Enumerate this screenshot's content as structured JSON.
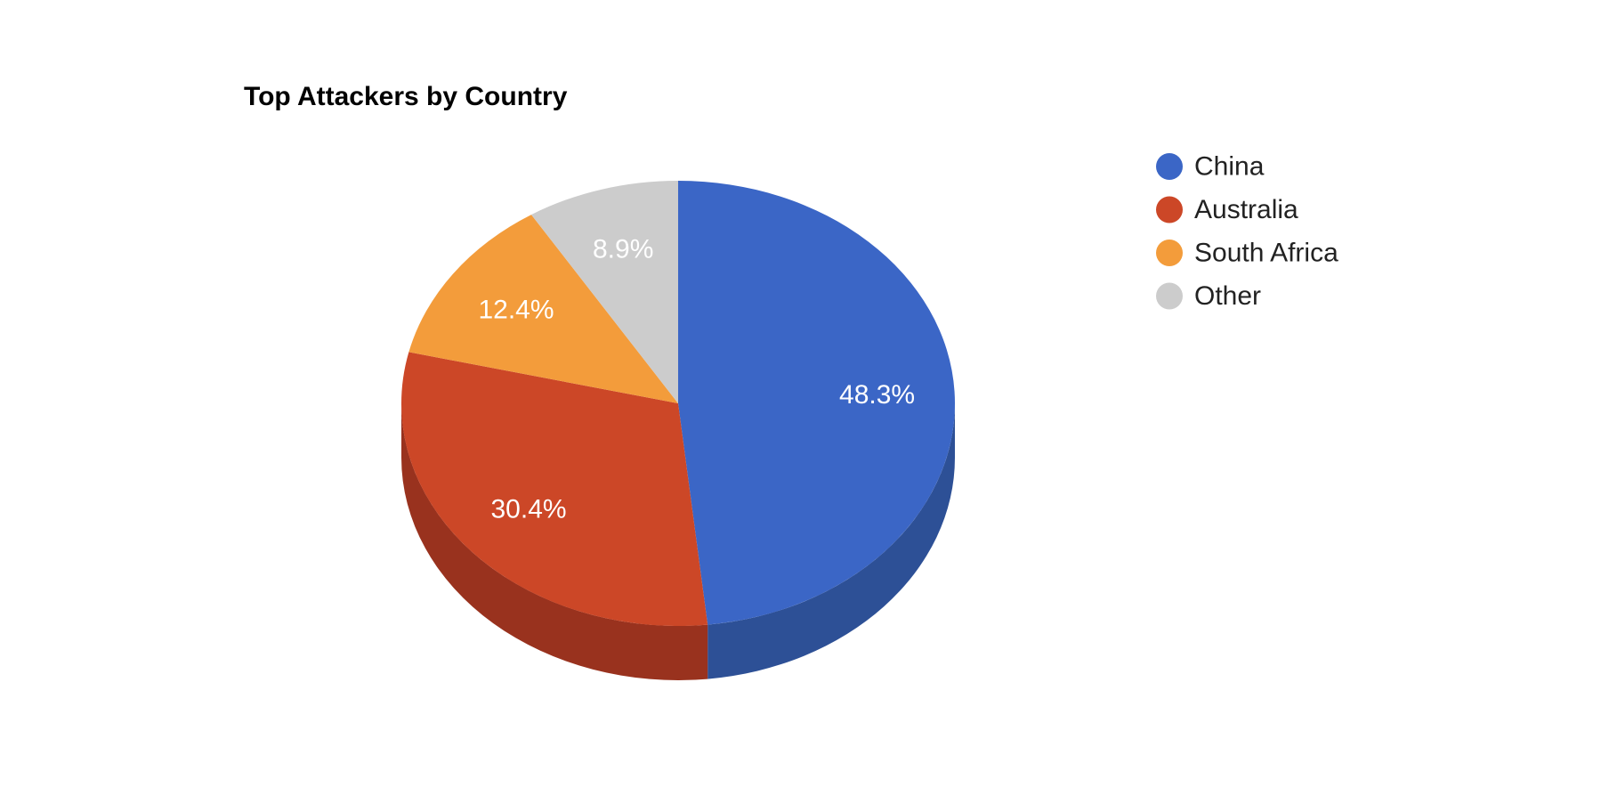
{
  "chart_data": {
    "type": "pie",
    "title": "Top Attackers by Country",
    "is3d": true,
    "legend_position": "right",
    "slices": [
      {
        "label": "China",
        "value": 48.3,
        "display": "48.3%",
        "color": "#3b66c6",
        "side_color": "#2d5096"
      },
      {
        "label": "Australia",
        "value": 30.4,
        "display": "30.4%",
        "color": "#cc4727",
        "side_color": "#99321e"
      },
      {
        "label": "South Africa",
        "value": 12.4,
        "display": "12.4%",
        "color": "#f39c3b",
        "side_color": "#b8762c"
      },
      {
        "label": "Other",
        "value": 8.9,
        "display": "8.9%",
        "color": "#cccccc",
        "side_color": "#999999"
      }
    ]
  }
}
